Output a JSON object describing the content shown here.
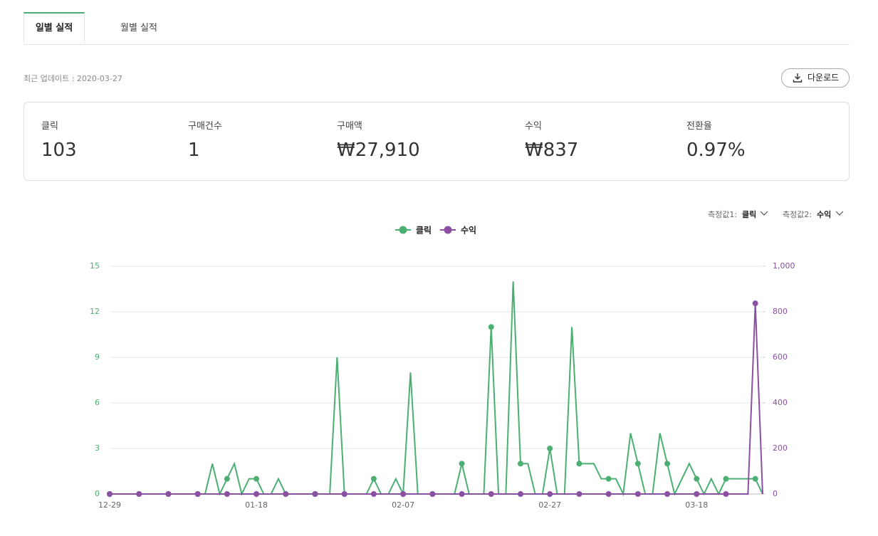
{
  "tabs": [
    "일별 실적",
    "월별 실적"
  ],
  "update": "최근 업데이트 : 2020-03-27",
  "download": "다운로드",
  "summary": [
    {
      "label": "클릭",
      "value": "103"
    },
    {
      "label": "구매건수",
      "value": "1"
    },
    {
      "label": "구매액",
      "value": "₩27,910"
    },
    {
      "label": "수익",
      "value": "₩837"
    },
    {
      "label": "전환율",
      "value": "0.97%"
    }
  ],
  "measures": [
    {
      "label": "측정값1:",
      "value": "클릭"
    },
    {
      "label": "측정값2:",
      "value": "수익"
    }
  ],
  "chart_data": {
    "type": "line",
    "categories": [
      "12-29",
      null,
      null,
      null,
      null,
      null,
      null,
      null,
      null,
      null,
      null,
      null,
      null,
      null,
      null,
      null,
      null,
      null,
      null,
      null,
      "01-18",
      null,
      null,
      null,
      null,
      null,
      null,
      null,
      null,
      null,
      null,
      null,
      null,
      null,
      null,
      null,
      null,
      null,
      null,
      null,
      "02-07",
      null,
      null,
      null,
      null,
      null,
      null,
      null,
      null,
      null,
      null,
      null,
      null,
      null,
      null,
      null,
      null,
      null,
      null,
      null,
      "02-27",
      null,
      null,
      null,
      null,
      null,
      null,
      null,
      null,
      null,
      null,
      null,
      null,
      null,
      null,
      null,
      null,
      null,
      null,
      null,
      "03-18",
      null,
      null,
      null,
      null,
      null,
      null,
      null,
      null,
      null
    ],
    "series": [
      {
        "name": "클릭",
        "color": "#4caf72",
        "axis": "y",
        "values": [
          0,
          0,
          0,
          0,
          0,
          0,
          0,
          0,
          0,
          0,
          0,
          0,
          0,
          0,
          2,
          0,
          1,
          2,
          0,
          1,
          1,
          0,
          0,
          1,
          0,
          0,
          0,
          0,
          0,
          0,
          0,
          9,
          0,
          0,
          0,
          0,
          1,
          0,
          0,
          1,
          0,
          8,
          0,
          0,
          0,
          0,
          0,
          0,
          2,
          0,
          0,
          0,
          11,
          0,
          0,
          14,
          2,
          2,
          0,
          0,
          3,
          0,
          0,
          11,
          2,
          2,
          2,
          1,
          1,
          1,
          0,
          4,
          2,
          0,
          0,
          4,
          2,
          0,
          1,
          2,
          1,
          0,
          1,
          0,
          1,
          1,
          1,
          1,
          1,
          0
        ]
      },
      {
        "name": "수익",
        "color": "#8b4fa3",
        "axis": "y2",
        "values": [
          0,
          0,
          0,
          0,
          0,
          0,
          0,
          0,
          0,
          0,
          0,
          0,
          0,
          0,
          0,
          0,
          0,
          0,
          0,
          0,
          0,
          0,
          0,
          0,
          0,
          0,
          0,
          0,
          0,
          0,
          0,
          0,
          0,
          0,
          0,
          0,
          0,
          0,
          0,
          0,
          0,
          0,
          0,
          0,
          0,
          0,
          0,
          0,
          0,
          0,
          0,
          0,
          0,
          0,
          0,
          0,
          0,
          0,
          0,
          0,
          0,
          0,
          0,
          0,
          0,
          0,
          0,
          0,
          0,
          0,
          0,
          0,
          0,
          0,
          0,
          0,
          0,
          0,
          0,
          0,
          0,
          0,
          0,
          0,
          0,
          0,
          0,
          0,
          837,
          0
        ]
      }
    ],
    "ylim": [
      0,
      15
    ],
    "yticks": [
      0,
      3,
      6,
      9,
      12,
      15
    ],
    "y2lim": [
      0,
      1000
    ],
    "y2ticks": [
      0,
      200,
      400,
      600,
      800,
      {
        "value": 1000,
        "label": "1,000"
      }
    ],
    "grid": true
  }
}
